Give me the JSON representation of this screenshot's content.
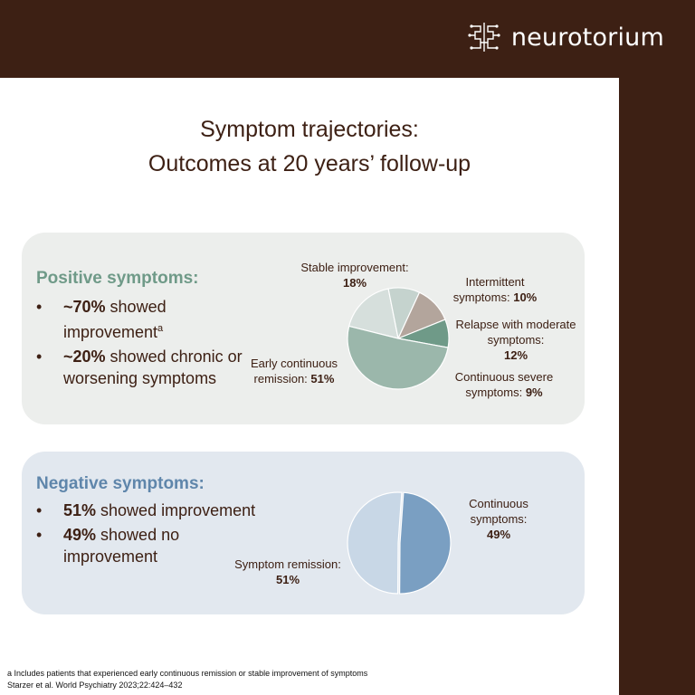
{
  "brand": {
    "name": "neurotorium"
  },
  "title": {
    "line1": "Symptom trajectories:",
    "line2": "Outcomes at 20 years’ follow-up"
  },
  "positive": {
    "heading": "Positive symptoms:",
    "bullets": [
      {
        "strong": "~70%",
        "text": " showed improvement",
        "sup": "a"
      },
      {
        "strong": "~20%",
        "text": " showed chronic or worsening symptoms",
        "sup": ""
      }
    ]
  },
  "negative": {
    "heading": "Negative symptoms:",
    "bullets": [
      {
        "strong": "51%",
        "text": " showed improvement"
      },
      {
        "strong": "49%",
        "text": " showed no improvement"
      }
    ]
  },
  "chart_data": [
    {
      "type": "pie",
      "slices": [
        {
          "label": "Stable improvement:",
          "value": 18,
          "display": "18%",
          "color": "#d6dfdc"
        },
        {
          "label": "Intermittent symptoms:",
          "value": 10,
          "display": "10%",
          "color": "#c5d3ce"
        },
        {
          "label": "Relapse with moderate symptoms:",
          "value": 12,
          "display": "12%",
          "color": "#b3a59c"
        },
        {
          "label": "Continuous severe symptoms:",
          "value": 9,
          "display": "9%",
          "color": "#6f9a88"
        },
        {
          "label": "Early continuous remission:",
          "value": 51,
          "display": "51%",
          "color": "#9bb7ab"
        }
      ]
    },
    {
      "type": "pie",
      "slices": [
        {
          "label": "Continuous symptoms:",
          "value": 49,
          "display": "49%",
          "color": "#7a9fc2"
        },
        {
          "label": "Symptom remission:",
          "value": 51,
          "display": "51%",
          "color": "#c8d7e6"
        }
      ]
    }
  ],
  "footnotes": [
    "a Includes patients that experienced early continuous remission or stable improvement of symptoms",
    "Starzer et al. World Psychiatry 2023;22:424–432"
  ],
  "colors": {
    "brown": "#3d2014",
    "positive_heading": "#6f9a88",
    "negative_heading": "#5f86ab"
  }
}
